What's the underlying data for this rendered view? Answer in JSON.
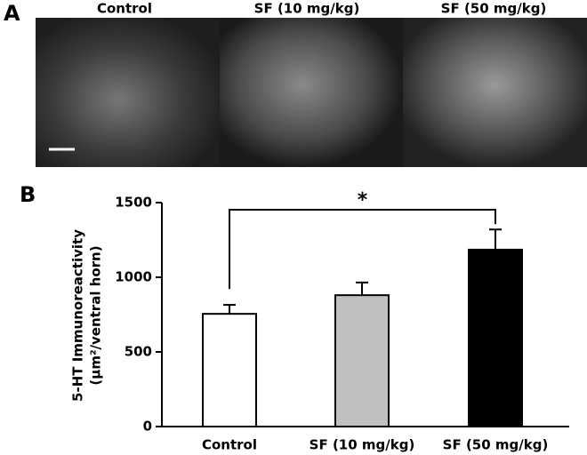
{
  "panel_labels": [
    "A",
    "B"
  ],
  "chart_data": {
    "type": "bar",
    "ylabel": [
      "5-HT Immunoreactivity",
      "(μm²/ventral horn)"
    ],
    "categories": [
      "Control",
      "SF (10 mg/kg)",
      "SF (50 mg/kg)"
    ],
    "values": [
      755,
      880,
      1185
    ],
    "errors": [
      60,
      85,
      135
    ],
    "colors": [
      "#ffffff",
      "#c0c0c0",
      "#000000"
    ],
    "ylim": [
      0,
      1500
    ],
    "yticks": [
      0,
      500,
      1000,
      1500
    ],
    "annotation": "*"
  }
}
